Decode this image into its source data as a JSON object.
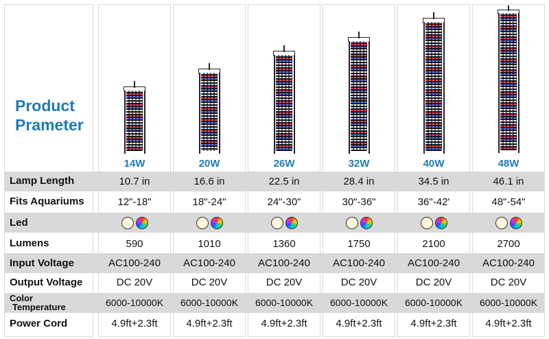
{
  "title_lines": [
    "Product",
    "Prameter"
  ],
  "models": [
    {
      "watt": "14W",
      "length": "10.7 in",
      "fits": "12\"-18\"",
      "lumens": "590",
      "input": "AC100-240",
      "output": "DC 20V",
      "color_temp": "6000-10000K",
      "cord": "4.9ft+2.3ft"
    },
    {
      "watt": "20W",
      "length": "16.6 in",
      "fits": "18\"-24\"",
      "lumens": "1010",
      "input": "AC100-240",
      "output": "DC 20V",
      "color_temp": "6000-10000K",
      "cord": "4.9ft+2.3ft"
    },
    {
      "watt": "26W",
      "length": "22.5 in",
      "fits": "24\"-30\"",
      "lumens": "1360",
      "input": "AC100-240",
      "output": "DC 20V",
      "color_temp": "6000-10000K",
      "cord": "4.9ft+2.3ft"
    },
    {
      "watt": "32W",
      "length": "28.4 in",
      "fits": "30\"-36\"",
      "lumens": "1750",
      "input": "AC100-240",
      "output": "DC 20V",
      "color_temp": "6000-10000K",
      "cord": "4.9ft+2.3ft"
    },
    {
      "watt": "40W",
      "length": "34.5 in",
      "fits": "36\"-42'",
      "lumens": "2100",
      "input": "AC100-240",
      "output": "DC 20V",
      "color_temp": "6000-10000K",
      "cord": "4.9ft+2.3ft"
    },
    {
      "watt": "48W",
      "length": "46.1 in",
      "fits": "48\"-54\"",
      "lumens": "2700",
      "input": "AC100-240",
      "output": "DC 20V",
      "color_temp": "6000-10000K",
      "cord": "4.9ft+2.3ft"
    }
  ],
  "row_labels": {
    "length": "Lamp Length",
    "fits": "Fits Aquariums",
    "led": "Led",
    "lumens": "Lumens",
    "input": "Input Voltage",
    "output": "Output Voltage",
    "color_temp_1": "Color",
    "color_temp_2": "Temperature",
    "cord": "Power Cord"
  },
  "colors": {
    "accent": "#1f7bb0",
    "row_shade": "#d9d9d9"
  },
  "led_icons": [
    "warm-white-led-icon",
    "rgb-led-icon"
  ]
}
